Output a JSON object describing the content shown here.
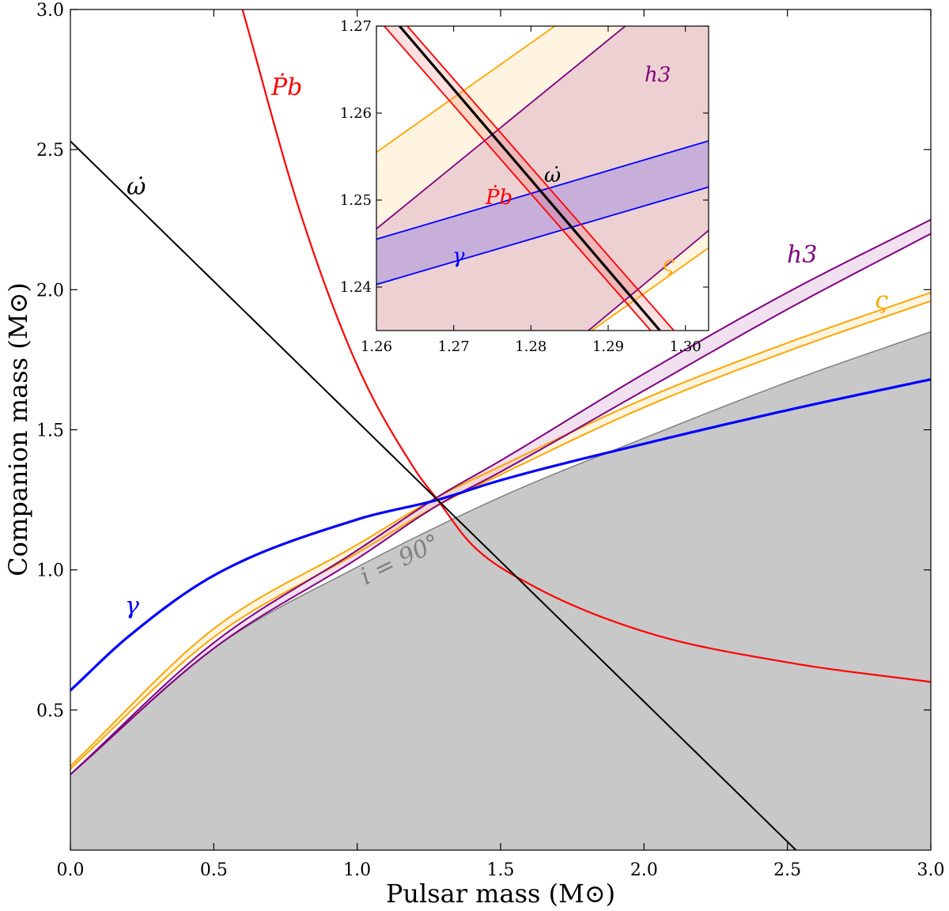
{
  "chart_data": {
    "type": "line",
    "title": "",
    "xlabel": "Pulsar mass (M⊙)",
    "ylabel": "Companion mass (M⊙)",
    "xlim": [
      0.0,
      3.0
    ],
    "ylim": [
      0.0,
      3.0
    ],
    "xticks": [
      "0.0",
      "0.5",
      "1.0",
      "1.5",
      "2.0",
      "2.5",
      "3.0"
    ],
    "yticks": [
      "0.5",
      "1.0",
      "1.5",
      "2.0",
      "2.5",
      "3.0"
    ],
    "colors": {
      "omega_dot": "#000000",
      "Pb_dot": "#ff0000",
      "gamma": "#0000ff",
      "h3": "#800080",
      "varsigma": "#ffa500",
      "forbidden": "#c8c8c8",
      "forbidden_edge": "#808080"
    },
    "series": [
      {
        "name": "omega_dot",
        "label": "ω̇",
        "x": [
          0.0,
          2.53
        ],
        "y": [
          2.53,
          0.0
        ]
      },
      {
        "name": "Pb_dot",
        "label": "Ṗb",
        "x": [
          0.6,
          0.8,
          1.0,
          1.2,
          1.28,
          1.4,
          1.6,
          2.0,
          2.5,
          3.0
        ],
        "y": [
          3.0,
          2.28,
          1.73,
          1.36,
          1.25,
          1.09,
          0.95,
          0.78,
          0.67,
          0.6
        ]
      },
      {
        "name": "gamma",
        "label": "γ",
        "x": [
          0.0,
          0.2,
          0.5,
          1.0,
          1.28,
          1.5,
          2.0,
          2.5,
          3.0
        ],
        "y": [
          0.57,
          0.76,
          0.98,
          1.18,
          1.25,
          1.32,
          1.45,
          1.57,
          1.68
        ]
      },
      {
        "name": "h3_upper",
        "label": "h3",
        "x": [
          0.0,
          0.5,
          1.0,
          1.28,
          1.5,
          2.0,
          2.5,
          3.0
        ],
        "y": [
          0.27,
          0.74,
          1.07,
          1.26,
          1.39,
          1.7,
          1.99,
          2.25
        ]
      },
      {
        "name": "h3_lower",
        "label": "h3",
        "x": [
          0.0,
          0.5,
          1.0,
          1.28,
          1.5,
          2.0,
          2.5,
          3.0
        ],
        "y": [
          0.27,
          0.72,
          1.04,
          1.23,
          1.35,
          1.64,
          1.93,
          2.2
        ]
      },
      {
        "name": "varsigma_upper",
        "label": "ς",
        "x": [
          0.0,
          0.5,
          1.0,
          1.28,
          1.5,
          2.0,
          2.5,
          3.0
        ],
        "y": [
          0.3,
          0.79,
          1.09,
          1.26,
          1.37,
          1.61,
          1.81,
          1.99
        ]
      },
      {
        "name": "varsigma_lower",
        "label": "ς",
        "x": [
          0.0,
          0.5,
          1.0,
          1.28,
          1.5,
          2.0,
          2.5,
          3.0
        ],
        "y": [
          0.29,
          0.76,
          1.06,
          1.23,
          1.34,
          1.58,
          1.78,
          1.96
        ]
      },
      {
        "name": "i90_boundary",
        "label": "i = 90°",
        "x": [
          0.0,
          0.5,
          1.0,
          1.5,
          2.0,
          2.5,
          3.0
        ],
        "y": [
          0.27,
          0.72,
          1.01,
          1.26,
          1.47,
          1.67,
          1.85
        ]
      }
    ],
    "annotations": [
      {
        "text": "ω̇",
        "color": "#000000"
      },
      {
        "text": "Ṗb",
        "color": "#ff0000"
      },
      {
        "text": "γ",
        "color": "#0000ff"
      },
      {
        "text": "h3",
        "color": "#800080"
      },
      {
        "text": "ς",
        "color": "#ffa500"
      },
      {
        "text": "i = 90°",
        "color": "#808080"
      }
    ],
    "inset": {
      "xlim": [
        1.26,
        1.303
      ],
      "ylim": [
        1.235,
        1.27
      ],
      "xticks": [
        "1.26",
        "1.27",
        "1.28",
        "1.29",
        "1.30"
      ],
      "yticks": [
        "1.24",
        "1.25",
        "1.26",
        "1.27"
      ],
      "series": [
        {
          "name": "omega_dot",
          "x": [
            1.263,
            1.2967
          ],
          "y": [
            1.27,
            1.235
          ]
        },
        {
          "name": "Pb_dot_left",
          "x": [
            1.261,
            1.2955
          ],
          "y": [
            1.27,
            1.235
          ]
        },
        {
          "name": "Pb_dot_right",
          "x": [
            1.264,
            1.2985
          ],
          "y": [
            1.27,
            1.235
          ]
        },
        {
          "name": "gamma_upper",
          "x": [
            1.26,
            1.303
          ],
          "y": [
            1.2455,
            1.2568
          ]
        },
        {
          "name": "gamma_lower",
          "x": [
            1.26,
            1.303
          ],
          "y": [
            1.2403,
            1.2515
          ]
        },
        {
          "name": "h3_upper",
          "x": [
            1.26,
            1.303
          ],
          "y": [
            1.2467,
            1.2778
          ]
        },
        {
          "name": "h3_lower",
          "x": [
            1.26,
            1.303
          ],
          "y": [
            1.2147,
            1.2465
          ]
        },
        {
          "name": "varsigma_upper",
          "x": [
            1.26,
            1.303
          ],
          "y": [
            1.2555,
            1.2825
          ]
        },
        {
          "name": "varsigma_lower",
          "x": [
            1.26,
            1.303
          ],
          "y": [
            1.2175,
            1.2445
          ]
        }
      ],
      "annotations": [
        {
          "text": "h3",
          "color": "#800080"
        },
        {
          "text": "ω̇",
          "color": "#000000"
        },
        {
          "text": "Ṗb",
          "color": "#ff0000"
        },
        {
          "text": "γ",
          "color": "#0000ff"
        },
        {
          "text": "ς",
          "color": "#ffa500"
        }
      ]
    }
  }
}
